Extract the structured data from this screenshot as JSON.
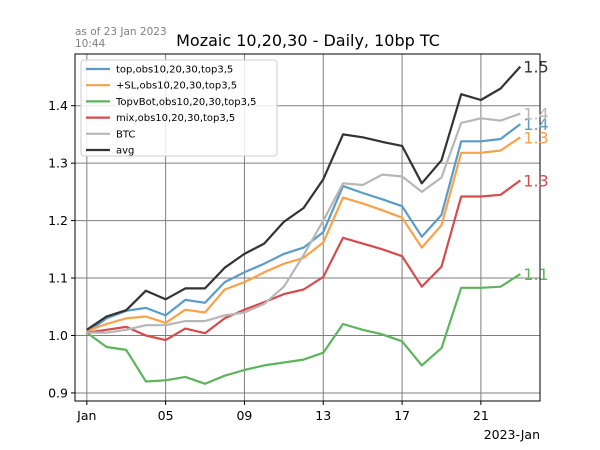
{
  "stamp": {
    "line1": "as of 23 Jan 2023",
    "line2": "10:44"
  },
  "chart_data": {
    "type": "line",
    "title": "Mozaic 10,20,30 - Daily, 10bp TC",
    "xlabel": "",
    "ylabel": "",
    "x_start": "2023-01-01",
    "x": [
      1,
      2,
      3,
      4,
      5,
      6,
      7,
      8,
      9,
      10,
      11,
      12,
      13,
      14,
      15,
      16,
      17,
      18,
      19,
      20,
      21,
      22,
      23
    ],
    "xlim": [
      0.4,
      24.0
    ],
    "ylim": [
      0.886,
      1.49
    ],
    "x_ticks": [
      {
        "day": 1,
        "label": "Jan"
      },
      {
        "day": 5,
        "label": "05"
      },
      {
        "day": 9,
        "label": "09"
      },
      {
        "day": 13,
        "label": "13"
      },
      {
        "day": 17,
        "label": "17"
      },
      {
        "day": 21,
        "label": "21"
      }
    ],
    "x_offset_label": "2023-Jan",
    "y_ticks": [
      {
        "value": 0.9,
        "label": "0.9"
      },
      {
        "value": 1.0,
        "label": "1.0"
      },
      {
        "value": 1.1,
        "label": "1.1"
      },
      {
        "value": 1.2,
        "label": "1.2"
      },
      {
        "value": 1.3,
        "label": "1.3"
      },
      {
        "value": 1.4,
        "label": "1.4"
      }
    ],
    "grid": true,
    "legend_position": "top-left",
    "series": [
      {
        "name": "top,obs10,20,30,top3,5",
        "color": "#5a9bc9",
        "end_label": "1.4",
        "values": [
          1.005,
          1.03,
          1.043,
          1.048,
          1.035,
          1.062,
          1.057,
          1.093,
          1.11,
          1.125,
          1.142,
          1.153,
          1.18,
          1.26,
          1.248,
          1.237,
          1.225,
          1.172,
          1.21,
          1.338,
          1.338,
          1.342,
          1.368
        ]
      },
      {
        "name": "+SL,obs10,20,30,top3,5",
        "color": "#f9a249",
        "end_label": "1.3",
        "values": [
          1.008,
          1.02,
          1.03,
          1.033,
          1.022,
          1.045,
          1.04,
          1.08,
          1.093,
          1.11,
          1.125,
          1.135,
          1.162,
          1.24,
          1.23,
          1.218,
          1.205,
          1.153,
          1.192,
          1.318,
          1.318,
          1.322,
          1.345
        ]
      },
      {
        "name": "TopvBot,obs10,20,30,top3,5",
        "color": "#5db45c",
        "end_label": "1.1",
        "values": [
          1.005,
          0.98,
          0.975,
          0.92,
          0.922,
          0.928,
          0.916,
          0.93,
          0.94,
          0.948,
          0.953,
          0.958,
          0.97,
          1.02,
          1.01,
          1.002,
          0.99,
          0.948,
          0.978,
          1.083,
          1.083,
          1.085,
          1.107
        ]
      },
      {
        "name": "mix,obs10,20,30,top3,5",
        "color": "#d64c4c",
        "end_label": "1.3",
        "values": [
          1.005,
          1.01,
          1.015,
          1.0,
          0.992,
          1.012,
          1.004,
          1.03,
          1.045,
          1.058,
          1.072,
          1.08,
          1.102,
          1.17,
          1.16,
          1.15,
          1.138,
          1.085,
          1.12,
          1.242,
          1.242,
          1.245,
          1.27
        ]
      },
      {
        "name": "BTC",
        "color": "#b7b7b7",
        "end_label": "1.4",
        "values": [
          1.005,
          1.005,
          1.01,
          1.018,
          1.018,
          1.025,
          1.025,
          1.035,
          1.04,
          1.055,
          1.085,
          1.14,
          1.2,
          1.265,
          1.262,
          1.28,
          1.277,
          1.25,
          1.275,
          1.37,
          1.378,
          1.374,
          1.386
        ]
      },
      {
        "name": "avg",
        "color": "#333333",
        "end_label": "1.5",
        "values": [
          1.01,
          1.033,
          1.044,
          1.078,
          1.063,
          1.082,
          1.082,
          1.118,
          1.142,
          1.16,
          1.198,
          1.222,
          1.272,
          1.35,
          1.345,
          1.337,
          1.33,
          1.265,
          1.305,
          1.42,
          1.41,
          1.43,
          1.468
        ]
      }
    ]
  }
}
